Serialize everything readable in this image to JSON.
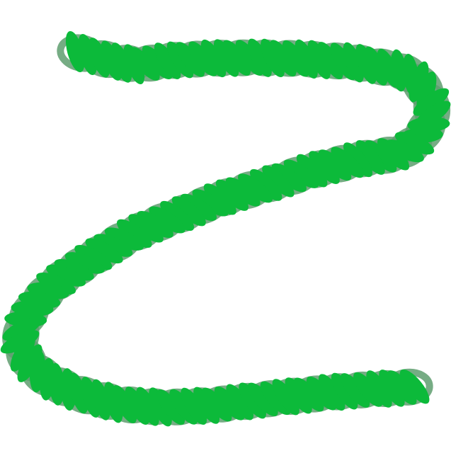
{
  "illustration": {
    "subject": "green-curb-chain-s-shape",
    "colors": {
      "background": "#ffffff",
      "link_front": "#0cba3a",
      "link_back": "#5e9e6e"
    }
  }
}
